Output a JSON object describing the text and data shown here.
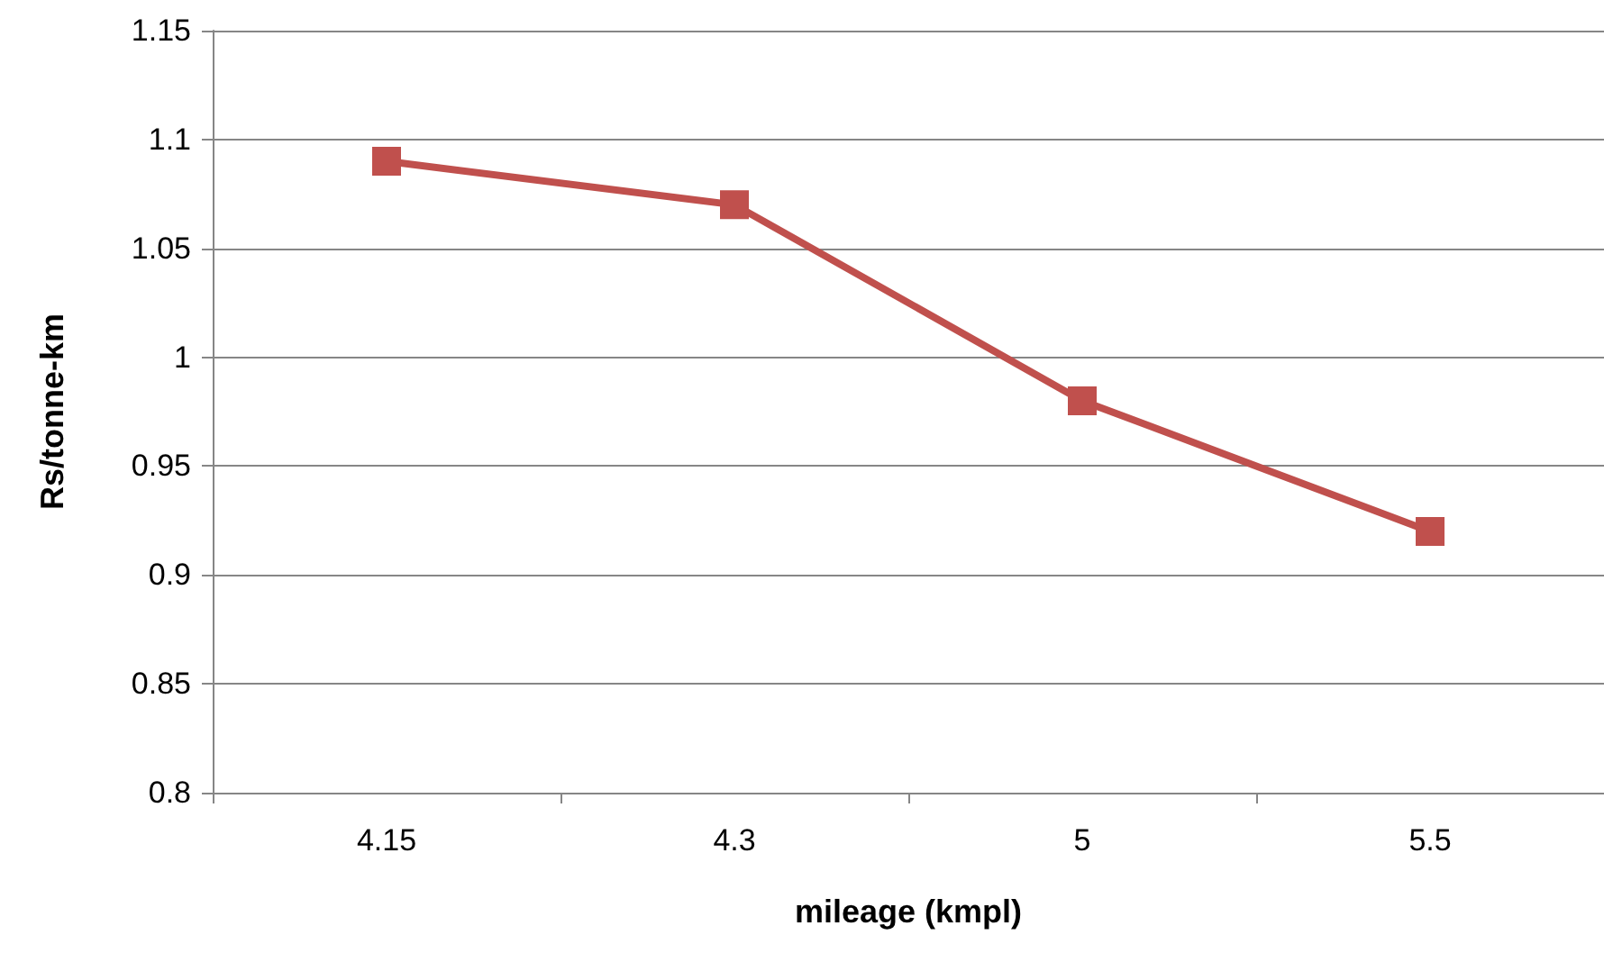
{
  "chart_data": {
    "type": "line",
    "xlabel": "mileage (kmpl)",
    "ylabel": "Rs/tonne-km",
    "categories": [
      "4.15",
      "4.3",
      "5",
      "5.5"
    ],
    "series": [
      {
        "color": "#c0504d",
        "values": [
          1.09,
          1.07,
          0.98,
          0.92
        ]
      }
    ],
    "ylim": [
      0.8,
      1.15
    ],
    "yticks": [
      0.8,
      0.85,
      0.9,
      0.95,
      1,
      1.05,
      1.1,
      1.15
    ],
    "grid": "y",
    "marker": "square",
    "line_style": "solid"
  }
}
